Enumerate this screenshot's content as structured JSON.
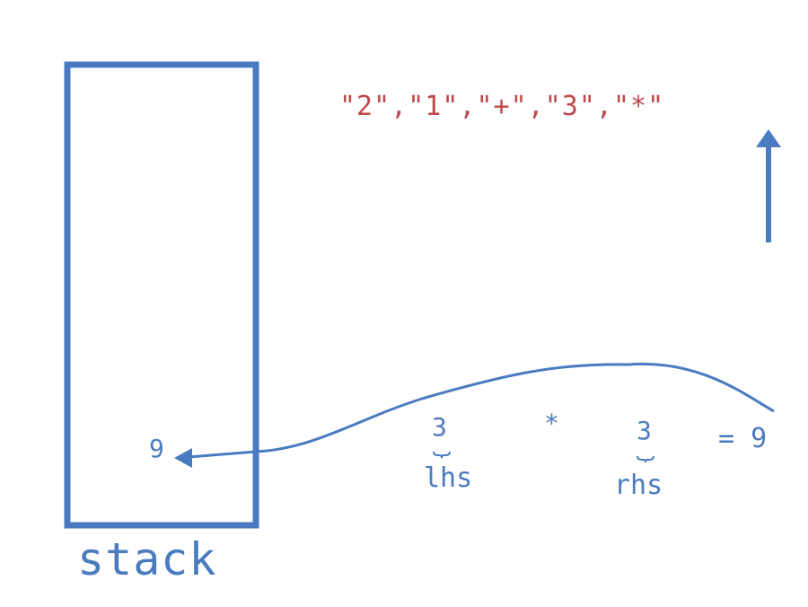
{
  "tokens_text": "\"2\",\"1\",\"+\",\"3\",\"*\"",
  "stack": {
    "label": "stack",
    "top_value": "9"
  },
  "expression": {
    "lhs_value": "3",
    "operator": "*",
    "rhs_value": "3",
    "result": "= 9",
    "lhs_label": "lhs",
    "rhs_label": "rhs"
  },
  "colors": {
    "primary": "#4a7bc0",
    "tokens": "#c0474a",
    "background": "#ffffff"
  },
  "icons": {
    "scan_direction": "up-arrow-icon",
    "push_result": "curved-arrow-icon"
  }
}
